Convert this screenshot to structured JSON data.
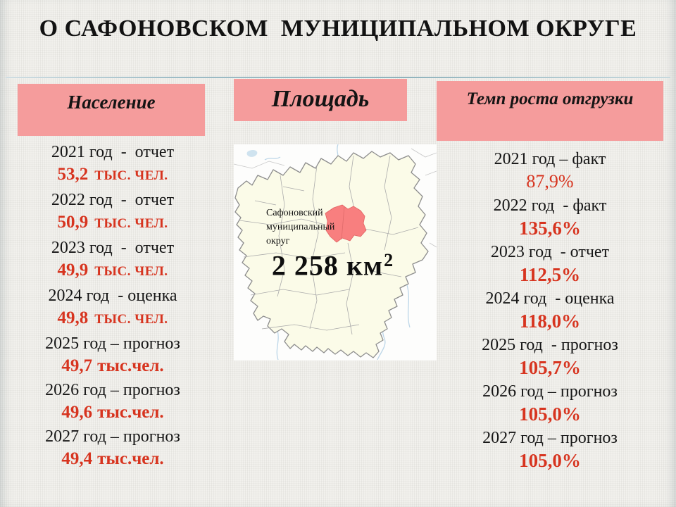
{
  "title": "О САФОНОВСКОМ  МУНИЦИПАЛЬНОМ ОКРУГЕ",
  "population": {
    "header": "Население",
    "entries": [
      {
        "label": "2021 год  -  отчет",
        "value": "53,2",
        "unit": "ТЫС. ЧЕЛ.",
        "unit_style": "caps"
      },
      {
        "label": "2022 год  -  отчет",
        "value": "50,9",
        "unit": "ТЫС. ЧЕЛ.",
        "unit_style": "caps"
      },
      {
        "label": "2023 год  -  отчет",
        "value": "49,9",
        "unit": "ТЫС. ЧЕЛ.",
        "unit_style": "caps"
      },
      {
        "label": "2024 год  - оценка",
        "value": "49,8",
        "unit": "ТЫС. ЧЕЛ.",
        "unit_style": "caps"
      },
      {
        "label": "2025 год – прогноз",
        "value": "49,7",
        "unit": "тыс.чел.",
        "unit_style": "lower"
      },
      {
        "label": "2026 год – прогноз",
        "value": "49,6",
        "unit": "тыс.чел.",
        "unit_style": "lower"
      },
      {
        "label": "2027 год – прогноз",
        "value": "49,4",
        "unit": "тыс.чел.",
        "unit_style": "lower"
      }
    ]
  },
  "area": {
    "header": "Площадь",
    "map_label": "Сафоновский муниципальный округ",
    "value_main": "2 258 км",
    "value_sup": "2"
  },
  "shipment": {
    "header": "Темп роста отгрузки",
    "entries": [
      {
        "label": "2021 год – факт",
        "value": "87,9%",
        "bold": false
      },
      {
        "label": "2022 год  - факт",
        "value": "135,6%",
        "bold": true
      },
      {
        "label": "2023 год  - отчет",
        "value": "112,5%",
        "bold": true
      },
      {
        "label": "2024 год  - оценка",
        "value": "118,0%",
        "bold": true
      },
      {
        "label": "2025 год  - прогноз",
        "value": "105,7%",
        "bold": true
      },
      {
        "label": "2026 год – прогноз",
        "value": "105,0%",
        "bold": true
      },
      {
        "label": "2027 год – прогноз",
        "value": "105,0%",
        "bold": true
      }
    ]
  },
  "colors": {
    "header_pink": "#F59C9C",
    "value_red": "#D7341F",
    "district_red": "#F87F7F",
    "map_land": "#FBFBE8",
    "divider_teal": "#8FB2BC"
  }
}
